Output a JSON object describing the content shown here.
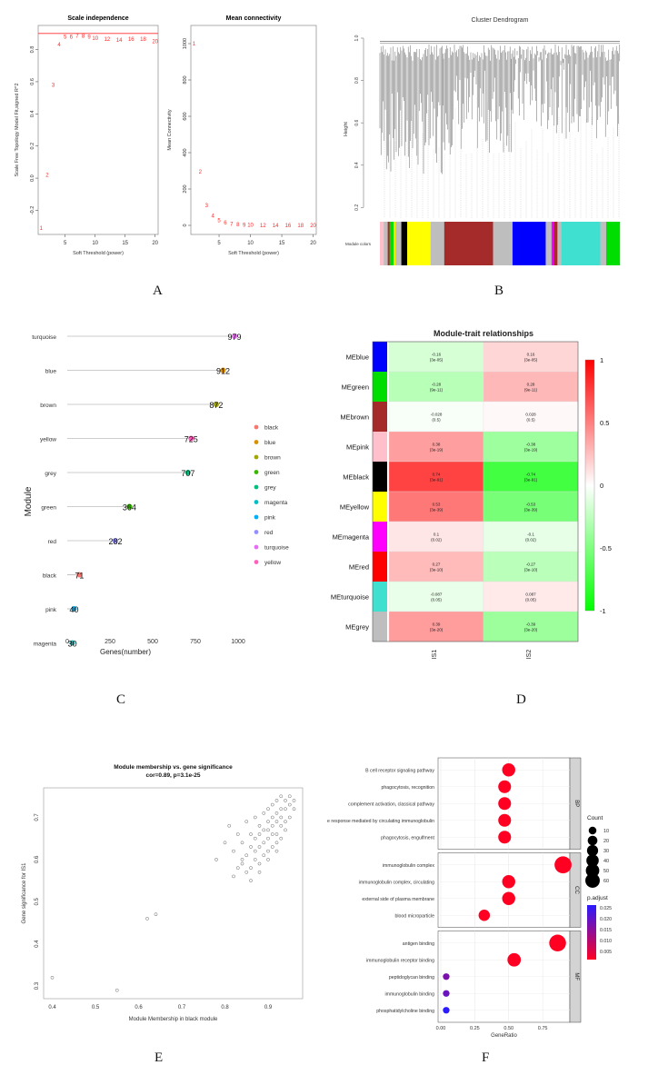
{
  "panel_labels": [
    "A",
    "B",
    "C",
    "D",
    "E",
    "F"
  ],
  "colors": {
    "red": "#ff2a2a",
    "grey_line": "#999999",
    "blue": "#0000ff",
    "green": "#00dd00",
    "brown": "#a52a2a",
    "pink": "#ffc0cb",
    "black": "#000000",
    "yellow": "#ffff00",
    "magenta": "#ff00ff",
    "turquoise": "#40e0d0",
    "grey": "#bebebe"
  },
  "chart_data": [
    {
      "id": "A1",
      "type": "scatter",
      "title": "Scale independence",
      "xlabel": "Soft Threshold (power)",
      "ylabel": "Scale Free Topology Model Fit,signed R^2",
      "xlim": [
        1,
        20
      ],
      "ylim": [
        -0.35,
        0.95
      ],
      "xticks": [
        5,
        10,
        15,
        20
      ],
      "yticks": [
        -0.2,
        0.0,
        0.2,
        0.4,
        0.6,
        0.8
      ],
      "ytick_labels": [
        "-0.2",
        "0.0",
        "0.2",
        "0.4",
        "0.6",
        "0.8"
      ],
      "hline": 0.9,
      "points": [
        {
          "x": 1,
          "y": -0.31,
          "label": "1"
        },
        {
          "x": 2,
          "y": 0.02,
          "label": "2"
        },
        {
          "x": 3,
          "y": 0.58,
          "label": "3"
        },
        {
          "x": 4,
          "y": 0.83,
          "label": "4"
        },
        {
          "x": 5,
          "y": 0.88,
          "label": "5"
        },
        {
          "x": 6,
          "y": 0.88,
          "label": "6"
        },
        {
          "x": 7,
          "y": 0.885,
          "label": "7"
        },
        {
          "x": 8,
          "y": 0.885,
          "label": "8"
        },
        {
          "x": 9,
          "y": 0.88,
          "label": "9"
        },
        {
          "x": 10,
          "y": 0.87,
          "label": "10"
        },
        {
          "x": 12,
          "y": 0.865,
          "label": "12"
        },
        {
          "x": 14,
          "y": 0.86,
          "label": "14"
        },
        {
          "x": 16,
          "y": 0.865,
          "label": "16"
        },
        {
          "x": 18,
          "y": 0.865,
          "label": "18"
        },
        {
          "x": 20,
          "y": 0.85,
          "label": "20"
        }
      ]
    },
    {
      "id": "A2",
      "type": "scatter",
      "title": "Mean connectivity",
      "xlabel": "Soft Threshold (power)",
      "ylabel": "Mean Connectivity",
      "xlim": [
        1,
        20
      ],
      "ylim": [
        -50,
        1100
      ],
      "xticks": [
        5,
        10,
        15,
        20
      ],
      "yticks": [
        0,
        200,
        400,
        600,
        800,
        1000
      ],
      "ytick_labels": [
        "0",
        "200",
        "400",
        "600",
        "800",
        "1000"
      ],
      "points": [
        {
          "x": 1,
          "y": 1000,
          "label": "1"
        },
        {
          "x": 2,
          "y": 295,
          "label": "2"
        },
        {
          "x": 3,
          "y": 110,
          "label": "3"
        },
        {
          "x": 4,
          "y": 52,
          "label": "4"
        },
        {
          "x": 5,
          "y": 28,
          "label": "5"
        },
        {
          "x": 6,
          "y": 15,
          "label": "6"
        },
        {
          "x": 7,
          "y": 8,
          "label": "7"
        },
        {
          "x": 8,
          "y": 5,
          "label": "8"
        },
        {
          "x": 9,
          "y": 3,
          "label": "9"
        },
        {
          "x": 10,
          "y": 2,
          "label": "10"
        },
        {
          "x": 12,
          "y": 1,
          "label": "12"
        },
        {
          "x": 14,
          "y": 1,
          "label": "14"
        },
        {
          "x": 16,
          "y": 1,
          "label": "16"
        },
        {
          "x": 18,
          "y": 0,
          "label": "18"
        },
        {
          "x": 20,
          "y": 0,
          "label": "20"
        }
      ]
    },
    {
      "id": "B",
      "type": "dendrogram",
      "title": "Cluster Dendrogram",
      "ylabel": "Height",
      "row_label": "Module colors",
      "ylim": [
        0.15,
        1.0
      ],
      "yticks": [
        0.2,
        0.4,
        0.6,
        0.8,
        1.0
      ],
      "ytick_labels": [
        "0.2",
        "0.4",
        "0.6",
        "0.8",
        "1.0"
      ],
      "color_strip": [
        {
          "color": "#ffc0cb",
          "w": 2
        },
        {
          "color": "#bebebe",
          "w": 2
        },
        {
          "color": "#a52a2a",
          "w": 1
        },
        {
          "color": "#00dd00",
          "w": 2
        },
        {
          "color": "#ffff00",
          "w": 1
        },
        {
          "color": "#bebebe",
          "w": 3
        },
        {
          "color": "#000000",
          "w": 3
        },
        {
          "color": "#ffff00",
          "w": 12
        },
        {
          "color": "#bebebe",
          "w": 7
        },
        {
          "color": "#a52a2a",
          "w": 25
        },
        {
          "color": "#bebebe",
          "w": 10
        },
        {
          "color": "#0000ff",
          "w": 17
        },
        {
          "color": "#bebebe",
          "w": 3
        },
        {
          "color": "#ff00ff",
          "w": 1
        },
        {
          "color": "#a52a2a",
          "w": 2
        },
        {
          "color": "#bebebe",
          "w": 2
        },
        {
          "color": "#40e0d0",
          "w": 20
        },
        {
          "color": "#bebebe",
          "w": 3
        },
        {
          "color": "#00dd00",
          "w": 7
        }
      ]
    },
    {
      "id": "C",
      "type": "bar",
      "subtype": "lollipop",
      "xlabel": "Genes(number)",
      "ylabel": "Module",
      "xlim": [
        0,
        1000
      ],
      "xticks": [
        0,
        250,
        500,
        750,
        1000
      ],
      "xtick_labels": [
        "0",
        "250",
        "500",
        "750",
        "1000"
      ],
      "categories": [
        "turquoise",
        "blue",
        "brown",
        "yellow",
        "grey",
        "green",
        "red",
        "black",
        "pink",
        "magenta"
      ],
      "values": [
        979,
        912,
        872,
        725,
        707,
        364,
        282,
        71,
        40,
        30
      ],
      "value_labels": [
        "979",
        "912",
        "872",
        "725",
        "707",
        "364",
        "282",
        "71",
        "40",
        "30"
      ],
      "legend": [
        "black",
        "blue",
        "brown",
        "green",
        "grey",
        "magenta",
        "pink",
        "red",
        "turquoise",
        "yellow"
      ],
      "legend_colors": [
        "#f8766d",
        "#d89000",
        "#a3a500",
        "#39b600",
        "#00bf7d",
        "#00bfc4",
        "#00b0f6",
        "#9590ff",
        "#e76bf3",
        "#ff62bc"
      ]
    },
    {
      "id": "D",
      "type": "heatmap",
      "title": "Module-trait relationships",
      "columns": [
        "IS1",
        "IS2"
      ],
      "rows": [
        {
          "name": "MEblue",
          "color": "#0000ff",
          "values": [
            -0.16,
            0.16
          ],
          "cells": [
            "-0.16\n(3e-05)",
            "0.16\n(3e-05)"
          ]
        },
        {
          "name": "MEgreen",
          "color": "#00dd00",
          "values": [
            -0.28,
            0.28
          ],
          "cells": [
            "-0.28\n(9e-11)",
            "0.28\n(9e-11)"
          ]
        },
        {
          "name": "MEbrown",
          "color": "#a52a2a",
          "values": [
            -0.028,
            0.028
          ],
          "cells": [
            "-0.028\n(0.5)",
            "0.028\n(0.5)"
          ]
        },
        {
          "name": "MEpink",
          "color": "#ffc0cb",
          "values": [
            0.38,
            -0.38
          ],
          "cells": [
            "0.38\n(3e-19)",
            "-0.38\n(3e-19)"
          ]
        },
        {
          "name": "MEblack",
          "color": "#000000",
          "values": [
            0.74,
            -0.74
          ],
          "cells": [
            "0.74\n(3e-91)",
            "-0.74\n(3e-91)"
          ]
        },
        {
          "name": "MEyellow",
          "color": "#ffff00",
          "values": [
            0.53,
            -0.53
          ],
          "cells": [
            "0.53\n(3e-39)",
            "-0.53\n(3e-39)"
          ]
        },
        {
          "name": "MEmagenta",
          "color": "#ff00ff",
          "values": [
            0.1,
            -0.1
          ],
          "cells": [
            "0.1\n(0.02)",
            "-0.1\n(0.02)"
          ]
        },
        {
          "name": "MEred",
          "color": "#ff0000",
          "values": [
            0.27,
            -0.27
          ],
          "cells": [
            "0.27\n(3e-10)",
            "-0.27\n(3e-10)"
          ]
        },
        {
          "name": "MEturquoise",
          "color": "#40e0d0",
          "values": [
            -0.087,
            0.087
          ],
          "cells": [
            "-0.087\n(0.05)",
            "0.087\n(0.05)"
          ]
        },
        {
          "name": "MEgrey",
          "color": "#bebebe",
          "values": [
            0.39,
            -0.39
          ],
          "cells": [
            "0.39\n(3e-20)",
            "-0.39\n(3e-20)"
          ]
        }
      ],
      "colorbar": {
        "ticks": [
          1,
          0.5,
          0,
          -0.5,
          -1
        ],
        "tick_labels": [
          "1",
          "0.5",
          "0",
          "-0.5",
          "-1"
        ],
        "low": "#00ff00",
        "mid": "#ffffff",
        "high": "#ff0000"
      }
    },
    {
      "id": "E",
      "type": "scatter",
      "title": "Module membership vs. gene significance",
      "subtitle": "cor=0.89, p=3.1e-25",
      "xlabel": "Module Membership in black module",
      "ylabel": "Gene significance for IS1",
      "xlim": [
        0.38,
        0.98
      ],
      "ylim": [
        0.27,
        0.77
      ],
      "xticks": [
        0.4,
        0.5,
        0.6,
        0.7,
        0.8,
        0.9
      ],
      "xtick_labels": [
        "0.4",
        "0.5",
        "0.6",
        "0.7",
        "0.8",
        "0.9"
      ],
      "yticks": [
        0.3,
        0.4,
        0.5,
        0.6,
        0.7
      ],
      "ytick_labels": [
        "0.3",
        "0.4",
        "0.5",
        "0.6",
        "0.7"
      ],
      "x": [
        0.4,
        0.55,
        0.62,
        0.64,
        0.78,
        0.8,
        0.81,
        0.82,
        0.82,
        0.83,
        0.83,
        0.84,
        0.84,
        0.85,
        0.85,
        0.85,
        0.86,
        0.86,
        0.86,
        0.87,
        0.87,
        0.87,
        0.87,
        0.88,
        0.88,
        0.88,
        0.88,
        0.89,
        0.89,
        0.89,
        0.89,
        0.9,
        0.9,
        0.9,
        0.9,
        0.9,
        0.91,
        0.91,
        0.91,
        0.91,
        0.91,
        0.92,
        0.92,
        0.92,
        0.92,
        0.92,
        0.93,
        0.93,
        0.93,
        0.93,
        0.93,
        0.94,
        0.94,
        0.94,
        0.94,
        0.95,
        0.95,
        0.95,
        0.96,
        0.96,
        0.86,
        0.88,
        0.84,
        0.9,
        0.92
      ],
      "y": [
        0.32,
        0.29,
        0.46,
        0.47,
        0.6,
        0.64,
        0.68,
        0.56,
        0.62,
        0.58,
        0.66,
        0.6,
        0.64,
        0.57,
        0.61,
        0.69,
        0.58,
        0.63,
        0.66,
        0.6,
        0.62,
        0.65,
        0.7,
        0.59,
        0.63,
        0.66,
        0.68,
        0.61,
        0.64,
        0.67,
        0.71,
        0.62,
        0.65,
        0.67,
        0.69,
        0.72,
        0.63,
        0.66,
        0.68,
        0.7,
        0.73,
        0.64,
        0.66,
        0.69,
        0.71,
        0.74,
        0.65,
        0.68,
        0.7,
        0.72,
        0.75,
        0.67,
        0.69,
        0.72,
        0.74,
        0.7,
        0.73,
        0.75,
        0.72,
        0.74,
        0.55,
        0.57,
        0.59,
        0.6,
        0.62
      ]
    },
    {
      "id": "F",
      "type": "scatter",
      "subtype": "dotplot",
      "xlabel": "GeneRatio",
      "xlim": [
        -0.02,
        0.95
      ],
      "xticks": [
        0,
        0.25,
        0.5,
        0.75
      ],
      "xtick_labels": [
        "0.00",
        "0.25",
        "0.50",
        "0.75"
      ],
      "groups": [
        {
          "name": "BP",
          "terms": [
            {
              "label": "B cell receptor signaling pathway",
              "ratio": 0.5,
              "count": 30,
              "p": 0.001
            },
            {
              "label": "phagocytosis, recognition",
              "ratio": 0.47,
              "count": 28,
              "p": 0.001
            },
            {
              "label": "complement activation, classical pathway",
              "ratio": 0.47,
              "count": 28,
              "p": 0.001
            },
            {
              "label": "humoral immune response mediated by circulating immunoglobulin",
              "ratio": 0.47,
              "count": 28,
              "p": 0.001
            },
            {
              "label": "phagocytosis, engulfment",
              "ratio": 0.47,
              "count": 28,
              "p": 0.001
            }
          ]
        },
        {
          "name": "CC",
          "terms": [
            {
              "label": "immunoglobulin complex",
              "ratio": 0.9,
              "count": 60,
              "p": 0.001
            },
            {
              "label": "immunoglobulin complex, circulating",
              "ratio": 0.5,
              "count": 30,
              "p": 0.001
            },
            {
              "label": "external side of plasma membrane",
              "ratio": 0.5,
              "count": 30,
              "p": 0.001
            },
            {
              "label": "blood microparticle",
              "ratio": 0.32,
              "count": 20,
              "p": 0.001
            }
          ]
        },
        {
          "name": "MF",
          "terms": [
            {
              "label": "antigen binding",
              "ratio": 0.86,
              "count": 58,
              "p": 0.001
            },
            {
              "label": "immunoglobulin receptor binding",
              "ratio": 0.54,
              "count": 32,
              "p": 0.001
            },
            {
              "label": "peptidoglycan binding",
              "ratio": 0.04,
              "count": 3,
              "p": 0.016
            },
            {
              "label": "immunoglobulin binding",
              "ratio": 0.04,
              "count": 3,
              "p": 0.018
            },
            {
              "label": "phosphatidylcholine binding",
              "ratio": 0.04,
              "count": 3,
              "p": 0.025
            }
          ]
        }
      ],
      "legend_count_title": "Count",
      "legend_counts": [
        10,
        20,
        30,
        40,
        50,
        60
      ],
      "legend_padj_title": "p.adjust",
      "legend_padj_ticks": [
        "0.025",
        "0.020",
        "0.015",
        "0.010",
        "0.005"
      ]
    }
  ]
}
